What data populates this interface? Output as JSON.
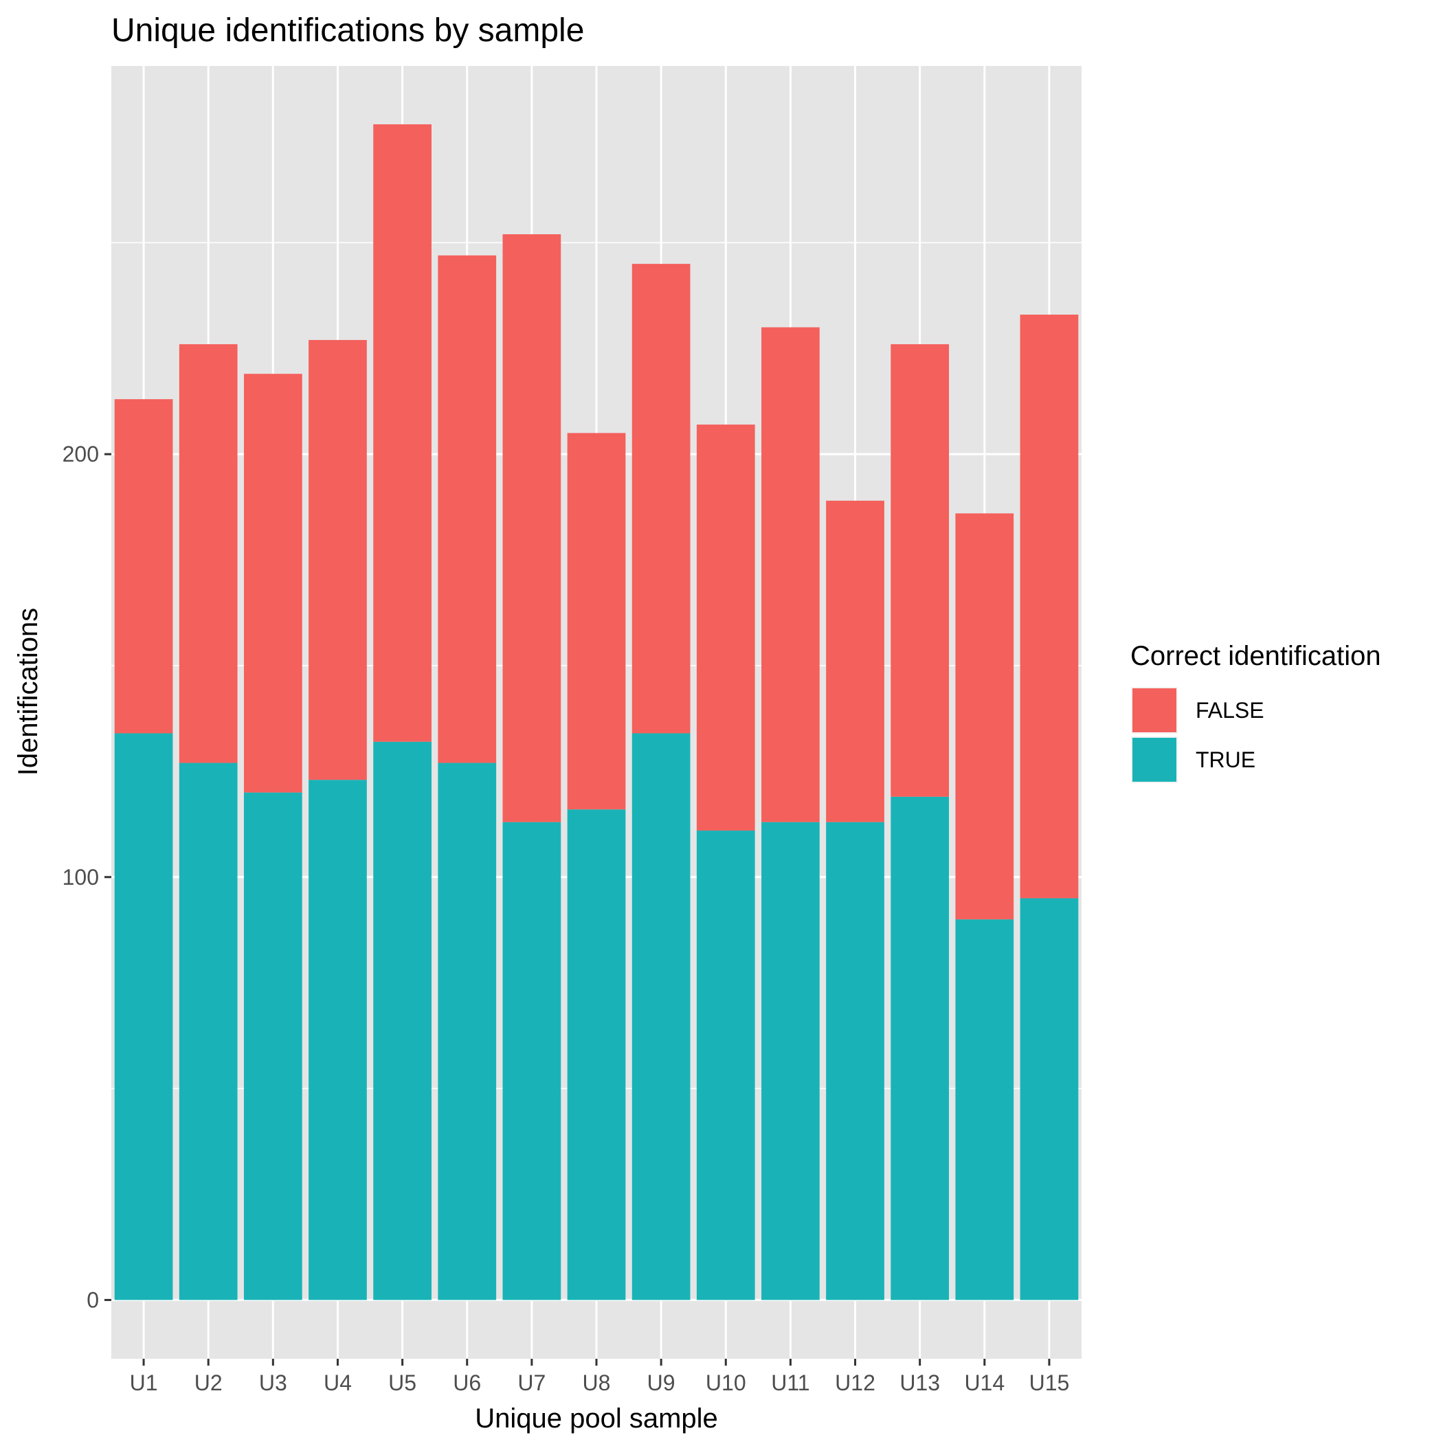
{
  "chart_data": {
    "type": "bar",
    "stacked": true,
    "title": "Unique identifications by sample",
    "xlabel": "Unique pool sample",
    "ylabel": "Identifications",
    "categories": [
      "U1",
      "U2",
      "U3",
      "U4",
      "U5",
      "U6",
      "U7",
      "U8",
      "U9",
      "U10",
      "U11",
      "U12",
      "U13",
      "U14",
      "U15"
    ],
    "series": [
      {
        "name": "TRUE",
        "color": "#19B3B7",
        "values": [
          134,
          127,
          120,
          123,
          132,
          127,
          113,
          116,
          134,
          111,
          113,
          113,
          119,
          90,
          95
        ]
      },
      {
        "name": "FALSE",
        "color": "#F4605C",
        "values": [
          79,
          99,
          99,
          104,
          146,
          120,
          139,
          89,
          111,
          96,
          117,
          76,
          107,
          96,
          138
        ]
      }
    ],
    "yticks": [
      0,
      100,
      200
    ],
    "ylim": [
      -13.9,
      291.8
    ],
    "grid": true,
    "legend": {
      "title": "Correct identification",
      "position": "right",
      "order": [
        "FALSE",
        "TRUE"
      ]
    },
    "colors": {
      "panel": "#E5E5E5",
      "gridline": "#FFFFFF"
    }
  }
}
